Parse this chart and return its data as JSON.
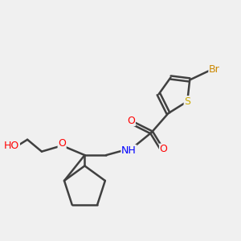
{
  "background_color": "#f0f0f0",
  "atom_colors": {
    "C": "#404040",
    "H": "#404040",
    "O": "#ff0000",
    "N": "#0000ff",
    "S": "#ccaa00",
    "Br": "#cc8800",
    "S_sulfonamide": "#ccaa00"
  },
  "bond_color": "#404040",
  "bond_width": 1.8,
  "figsize": [
    3.0,
    3.0
  ],
  "dpi": 100
}
